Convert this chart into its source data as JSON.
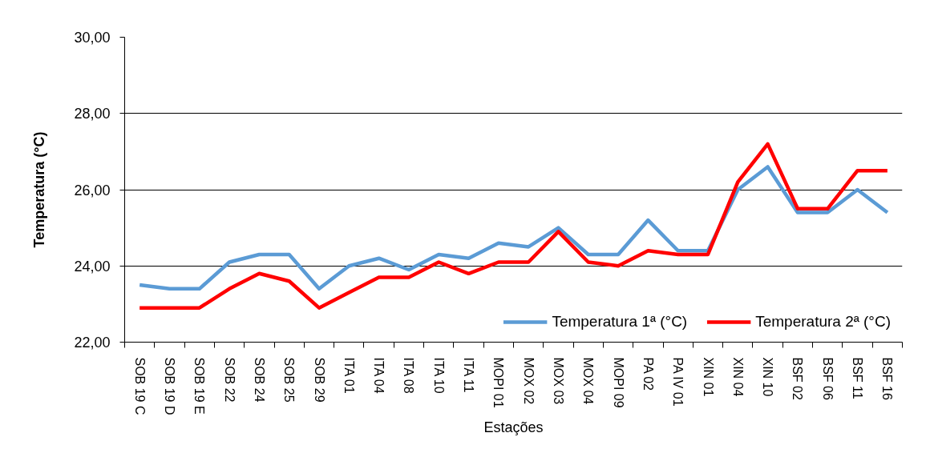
{
  "chart_data": {
    "type": "line",
    "xlabel": "Estações",
    "ylabel": "Temperatura (°C)",
    "categories": [
      "SOB 19 C",
      "SOB 19 D",
      "SOB 19 E",
      "SOB 22",
      "SOB 24",
      "SOB 25",
      "SOB 29",
      "ITA 01",
      "ITA 04",
      "ITA 08",
      "ITA 10",
      "ITA 11",
      "MOPI 01",
      "MOX 02",
      "MOX 03",
      "MOX 04",
      "MOPI 09",
      "PA 02",
      "PA IV 01",
      "XIN 01",
      "XIN 04",
      "XIN 10",
      "BSF 02",
      "BSF 06",
      "BSF 11",
      "BSF 16"
    ],
    "series": [
      {
        "name": "Temperatura 1ª (°C)",
        "color": "#5b9bd5",
        "values": [
          23.5,
          23.4,
          23.4,
          24.1,
          24.3,
          24.3,
          23.4,
          24.0,
          24.2,
          23.9,
          24.3,
          24.2,
          24.6,
          24.5,
          25.0,
          24.3,
          24.3,
          25.2,
          24.4,
          24.4,
          26.0,
          26.6,
          25.4,
          25.4,
          26.0,
          25.4
        ]
      },
      {
        "name": "Temperatura 2ª (°C)",
        "color": "#ff0000",
        "values": [
          22.9,
          22.9,
          22.9,
          23.4,
          23.8,
          23.6,
          22.9,
          23.3,
          23.7,
          23.7,
          24.1,
          23.8,
          24.1,
          24.1,
          24.9,
          24.1,
          24.0,
          24.4,
          24.3,
          24.3,
          26.2,
          27.2,
          25.5,
          25.5,
          26.5,
          26.5
        ]
      }
    ],
    "ylim": [
      22,
      30
    ],
    "yticks": [
      {
        "value": 22,
        "label": "22,00"
      },
      {
        "value": 24,
        "label": "24,00"
      },
      {
        "value": 26,
        "label": "26,00"
      },
      {
        "value": 28,
        "label": "28,00"
      },
      {
        "value": 30,
        "label": "30,00"
      }
    ],
    "grid": "y",
    "legend": "bottom right"
  }
}
